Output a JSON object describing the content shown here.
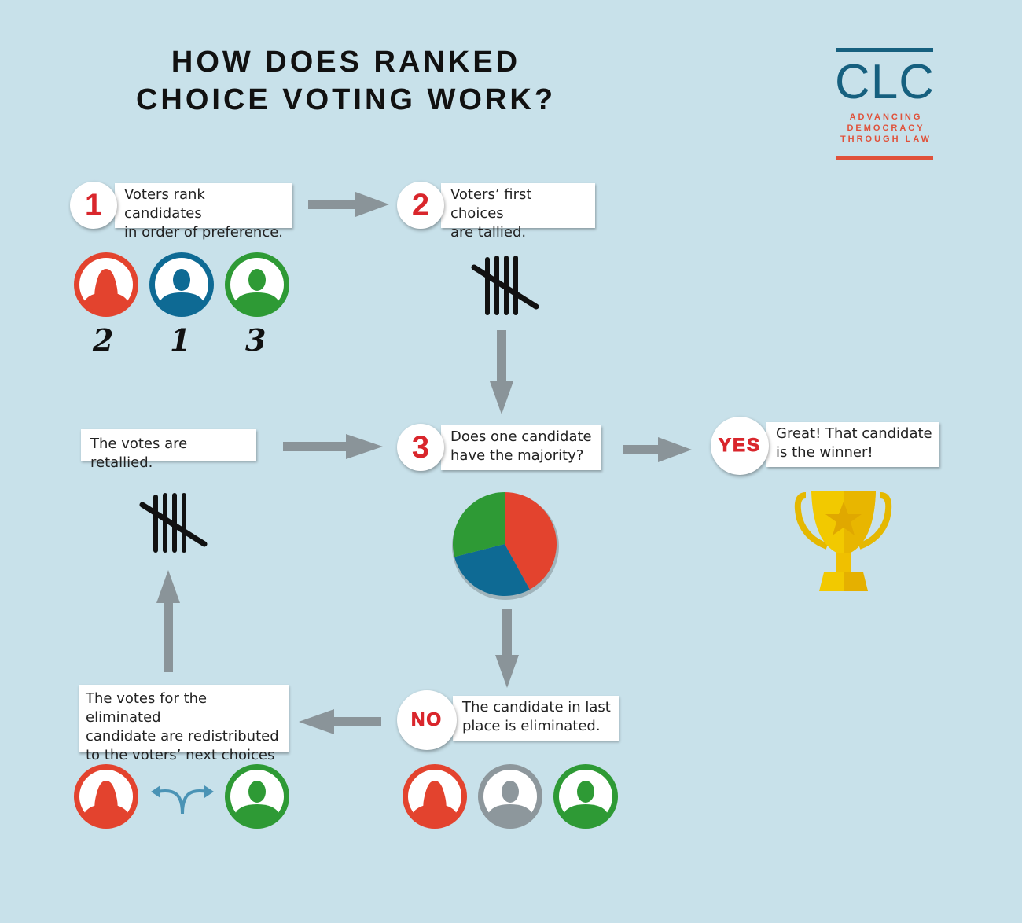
{
  "title": {
    "line1": "HOW DOES RANKED",
    "line2": "CHOICE VOTING WORK?"
  },
  "logo": {
    "name": "CLC",
    "tagline": [
      "ADVANCING",
      "DEMOCRACY",
      "THROUGH LAW"
    ]
  },
  "colors": {
    "background": "#c8e1ea",
    "red": "#e3432e",
    "blue": "#0e6a94",
    "green": "#2e9a35",
    "gray": "#8d979c",
    "arrow": "#8a9499",
    "badge_text": "#d9262c"
  },
  "steps": {
    "step1": {
      "badge": "1",
      "text": [
        "Voters rank candidates",
        "in order of preference."
      ]
    },
    "step2": {
      "badge": "2",
      "text": [
        "Voters’ first choices",
        "are tallied."
      ]
    },
    "step3": {
      "badge": "3",
      "text": [
        "Does one candidate",
        "have the majority?"
      ]
    },
    "yes": {
      "badge": "YES",
      "text": [
        "Great! That candidate",
        "is the winner!"
      ]
    },
    "no": {
      "badge": "NO",
      "text": [
        "The candidate in last",
        "place is eliminated."
      ]
    },
    "redistribute": {
      "text": [
        "The votes for the eliminated",
        "candidate are redistributed",
        "to the voters’ next choices"
      ]
    },
    "retallied": {
      "text": "The votes are retallied."
    }
  },
  "rankings": [
    "2",
    "1",
    "3"
  ],
  "pie": {
    "slices": [
      {
        "color": "red",
        "fraction": 0.42
      },
      {
        "color": "blue",
        "fraction": 0.29
      },
      {
        "color": "green",
        "fraction": 0.29
      }
    ]
  }
}
